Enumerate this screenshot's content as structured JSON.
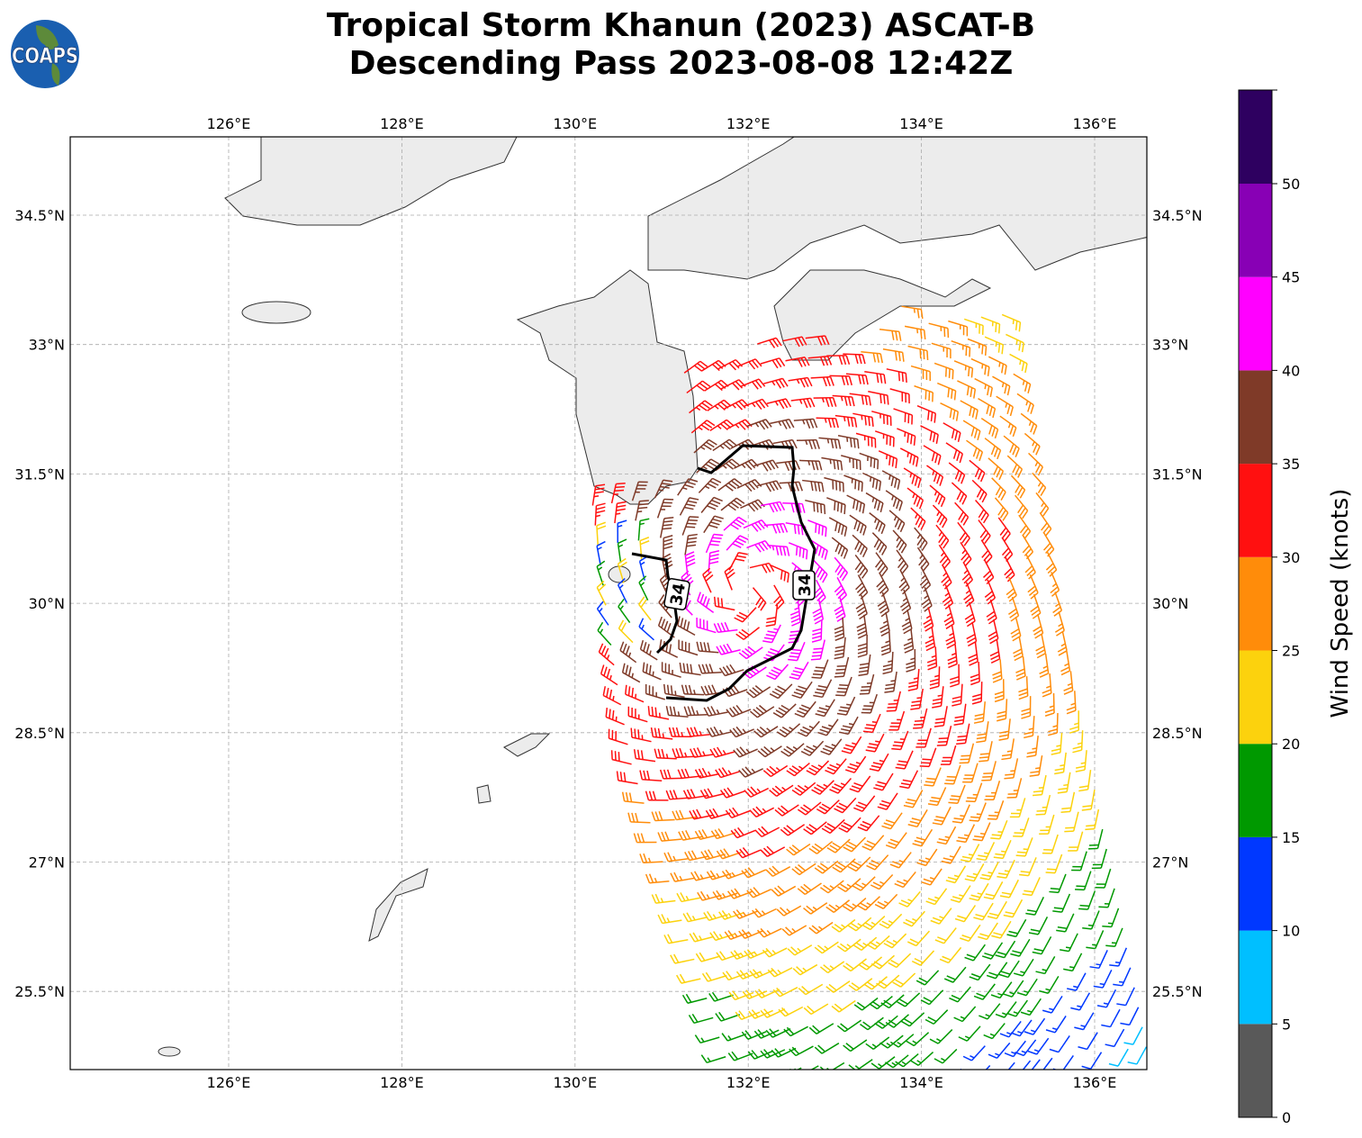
{
  "title": {
    "line1": "Tropical Storm Khanun (2023) ASCAT-B",
    "line2": "Descending Pass 2023-08-08 12:42Z"
  },
  "logo": {
    "text": "COAPS"
  },
  "map": {
    "lon_ticks": [
      "126°E",
      "128°E",
      "130°E",
      "132°E",
      "134°E",
      "136°E"
    ],
    "lat_ticks": [
      "34.5°N",
      "33°N",
      "31.5°N",
      "30°N",
      "28.5°N",
      "27°N",
      "25.5°N"
    ],
    "contour_label": "34",
    "gridlines": true
  },
  "colorbar": {
    "label": "Wind Speed (knots)",
    "ticks": [
      "0",
      "5",
      "10",
      "15",
      "20",
      "25",
      "30",
      "35",
      "40",
      "45",
      "50"
    ],
    "colors": [
      "#595959",
      "#00bfff",
      "#0038ff",
      "#009900",
      "#fcd20d",
      "#ff8c0a",
      "#ff1010",
      "#7f3a28",
      "#ff00ff",
      "#8800b5",
      "#2e0060"
    ]
  }
}
